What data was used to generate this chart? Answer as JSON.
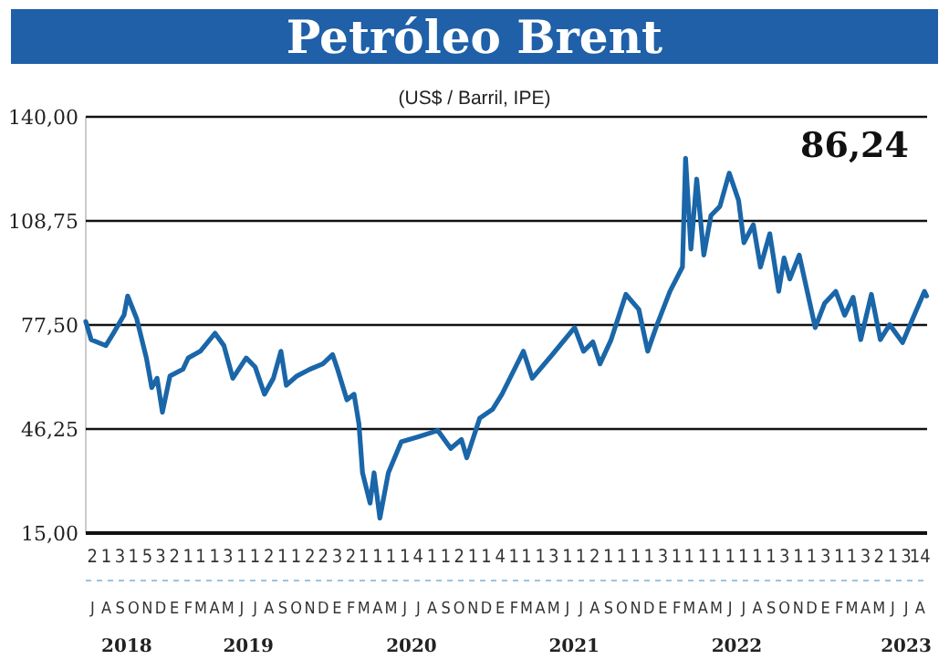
{
  "chart_data": {
    "type": "line",
    "title": "Petróleo Brent",
    "subtitle": "(US$ / Barril, IPE)",
    "annotations": [
      "86,24",
      "J",
      "A",
      "S",
      "O",
      "N",
      "D",
      "E",
      "F",
      "M",
      "A",
      "M",
      "J",
      "J",
      "A",
      "S",
      "O",
      "N",
      "D",
      "E",
      "F",
      "M",
      "A",
      "M",
      "J",
      "J",
      "A",
      "S",
      "O",
      "N",
      "D",
      "E",
      "F",
      "M",
      "A",
      "M",
      "J",
      "J",
      "A",
      "S",
      "O",
      "N",
      "D",
      "E",
      "F",
      "M",
      "A",
      "M",
      "J",
      "J",
      "A",
      "S",
      "O",
      "N",
      "D",
      "E",
      "F",
      "M",
      "A",
      "M",
      "J",
      "J",
      "A"
    ],
    "x": [
      "2018-07-01",
      "2018-07-13",
      "2018-08-15",
      "2018-09-01",
      "2018-09-25",
      "2018-10-03",
      "2018-10-23",
      "2018-11-14",
      "2018-11-26",
      "2018-12-08",
      "2018-12-20",
      "2019-01-06",
      "2019-02-04",
      "2019-02-16",
      "2019-03-15",
      "2019-04-17",
      "2019-05-07",
      "2019-05-27",
      "2019-06-26",
      "2019-07-16",
      "2019-08-06",
      "2019-08-26",
      "2019-09-12",
      "2019-09-24",
      "2019-10-18",
      "2019-11-16",
      "2019-12-15",
      "2020-01-06",
      "2020-01-17",
      "2020-02-07",
      "2020-02-23",
      "2020-03-05",
      "2020-03-13",
      "2020-03-30",
      "2020-04-08",
      "2020-04-21",
      "2020-05-10",
      "2020-06-08",
      "2020-07-18",
      "2020-08-29",
      "2020-09-27",
      "2020-10-21",
      "2020-11-02",
      "2020-12-01",
      "2020-12-30",
      "2021-01-20",
      "2021-03-09",
      "2021-03-29",
      "2021-05-13",
      "2021-07-02",
      "2021-07-22",
      "2021-08-12",
      "2021-08-28",
      "2021-09-22",
      "2021-10-25",
      "2021-11-23",
      "2021-12-13",
      "2022-01-03",
      "2022-02-01",
      "2022-03-01",
      "2022-03-08",
      "2022-03-20",
      "2022-04-02",
      "2022-04-18",
      "2022-05-04",
      "2022-05-24",
      "2022-06-14",
      "2022-07-05",
      "2022-07-17",
      "2022-08-07",
      "2022-08-23",
      "2022-09-13",
      "2022-10-03",
      "2022-10-15",
      "2022-10-28",
      "2022-11-18",
      "2022-12-24",
      "2023-01-14",
      "2023-02-08",
      "2023-02-28",
      "2023-03-19",
      "2023-04-05",
      "2023-04-29",
      "2023-05-19",
      "2023-06-09",
      "2023-07-08",
      "2023-07-28",
      "2023-08-26",
      "2023-08-31"
    ],
    "series": [
      {
        "color": "#1a66a8",
        "values": [
          78.5,
          73.1,
          71.3,
          75,
          80.5,
          86.2,
          79.5,
          67.6,
          58.7,
          61.5,
          51.3,
          62.2,
          64.2,
          67.6,
          69.6,
          75,
          71.3,
          61.5,
          67.6,
          64.9,
          56.7,
          61.5,
          69.6,
          59.4,
          62.2,
          64.2,
          65.8,
          68.6,
          64.2,
          55,
          56.7,
          47.8,
          33.1,
          24,
          33.1,
          19.5,
          33.1,
          42.4,
          44,
          45.8,
          40.4,
          43.1,
          37.6,
          49.5,
          52.2,
          56.7,
          69.6,
          61.5,
          68.6,
          76.7,
          69.6,
          72.4,
          65.8,
          73.1,
          86.7,
          82.2,
          69.6,
          77.6,
          87.6,
          94.9,
          127.6,
          100.3,
          121.3,
          98.5,
          110.4,
          113.1,
          123.1,
          114.9,
          102.2,
          107.6,
          94.9,
          104.9,
          87.6,
          97.6,
          91.3,
          98.5,
          76.7,
          84,
          87.6,
          80.4,
          85.8,
          73.1,
          86.7,
          73.1,
          77.6,
          72.2,
          78.5,
          87.6,
          86.2
        ]
      }
    ],
    "ylim": [
      15,
      140
    ],
    "yticks": [
      {
        "value": 15,
        "label": "15,00"
      },
      {
        "value": 46.25,
        "label": "46,25"
      },
      {
        "value": 77.5,
        "label": "77,50"
      },
      {
        "value": 108.75,
        "label": "108,75"
      },
      {
        "value": 140,
        "label": "140,00"
      }
    ],
    "grid": "y",
    "xlim": [
      "2018-07-01",
      "2023-09-01"
    ],
    "xticks": [
      {
        "value": "2018-10-01",
        "label": "2018"
      },
      {
        "value": "2019-07-01",
        "label": "2019"
      },
      {
        "value": "2020-07-01",
        "label": "2020"
      },
      {
        "value": "2021-07-01",
        "label": "2021"
      },
      {
        "value": "2022-07-01",
        "label": "2022"
      },
      {
        "value": "2023-07-16",
        "label": "2023"
      }
    ],
    "x2lim": [
      "2018-07-01",
      "2023-09-01"
    ],
    "x2ticks": [
      {
        "value": "2018-07-16",
        "label": "2"
      },
      {
        "value": "2018-08-16",
        "label": "1"
      },
      {
        "value": "2018-09-16",
        "label": "3"
      },
      {
        "value": "2018-10-16",
        "label": "1"
      },
      {
        "value": "2018-11-16",
        "label": "5"
      },
      {
        "value": "2018-12-16",
        "label": "3"
      },
      {
        "value": "2019-01-16",
        "label": "2"
      },
      {
        "value": "2019-02-16",
        "label": "1"
      },
      {
        "value": "2019-03-16",
        "label": "1"
      },
      {
        "value": "2019-04-16",
        "label": "1"
      },
      {
        "value": "2019-05-16",
        "label": "3"
      },
      {
        "value": "2019-06-16",
        "label": "1"
      },
      {
        "value": "2019-07-16",
        "label": "1"
      },
      {
        "value": "2019-08-16",
        "label": "2"
      },
      {
        "value": "2019-09-16",
        "label": "1"
      },
      {
        "value": "2019-10-16",
        "label": "1"
      },
      {
        "value": "2019-11-16",
        "label": "2"
      },
      {
        "value": "2019-12-16",
        "label": "2"
      },
      {
        "value": "2020-01-16",
        "label": "3"
      },
      {
        "value": "2020-02-16",
        "label": "2"
      },
      {
        "value": "2020-03-16",
        "label": "1"
      },
      {
        "value": "2020-04-16",
        "label": "1"
      },
      {
        "value": "2020-05-16",
        "label": "1"
      },
      {
        "value": "2020-06-16",
        "label": "1"
      },
      {
        "value": "2020-07-16",
        "label": "4"
      },
      {
        "value": "2020-08-16",
        "label": "1"
      },
      {
        "value": "2020-09-16",
        "label": "1"
      },
      {
        "value": "2020-10-16",
        "label": "2"
      },
      {
        "value": "2020-11-16",
        "label": "1"
      },
      {
        "value": "2020-12-16",
        "label": "1"
      },
      {
        "value": "2021-01-16",
        "label": "4"
      },
      {
        "value": "2021-02-16",
        "label": "1"
      },
      {
        "value": "2021-03-16",
        "label": "1"
      },
      {
        "value": "2021-04-16",
        "label": "1"
      },
      {
        "value": "2021-05-16",
        "label": "3"
      },
      {
        "value": "2021-06-16",
        "label": "1"
      },
      {
        "value": "2021-07-16",
        "label": "1"
      },
      {
        "value": "2021-08-16",
        "label": "2"
      },
      {
        "value": "2021-09-16",
        "label": "1"
      },
      {
        "value": "2021-10-16",
        "label": "1"
      },
      {
        "value": "2021-11-16",
        "label": "1"
      },
      {
        "value": "2021-12-16",
        "label": "1"
      },
      {
        "value": "2022-01-16",
        "label": "3"
      },
      {
        "value": "2022-02-16",
        "label": "1"
      },
      {
        "value": "2022-03-16",
        "label": "1"
      },
      {
        "value": "2022-04-16",
        "label": "1"
      },
      {
        "value": "2022-05-16",
        "label": "1"
      },
      {
        "value": "2022-06-16",
        "label": "1"
      },
      {
        "value": "2022-07-16",
        "label": "1"
      },
      {
        "value": "2022-08-16",
        "label": "1"
      },
      {
        "value": "2022-09-16",
        "label": "1"
      },
      {
        "value": "2022-10-16",
        "label": "3"
      },
      {
        "value": "2022-11-16",
        "label": "1"
      },
      {
        "value": "2022-12-16",
        "label": "1"
      },
      {
        "value": "2023-01-16",
        "label": "3"
      },
      {
        "value": "2023-02-16",
        "label": "1"
      },
      {
        "value": "2023-03-16",
        "label": "1"
      },
      {
        "value": "2023-04-16",
        "label": "3"
      },
      {
        "value": "2023-05-16",
        "label": "2"
      },
      {
        "value": "2023-06-16",
        "label": "1"
      },
      {
        "value": "2023-07-16",
        "label": "3"
      },
      {
        "value": "2023-08-16",
        "label": "14"
      }
    ]
  }
}
